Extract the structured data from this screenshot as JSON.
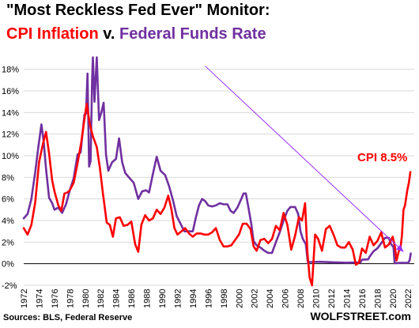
{
  "title": {
    "line1": "\"Most Reckless Fed Ever\" Monitor:",
    "cpi": "CPI Inflation",
    "sep": " v. ",
    "ffr": "Federal Funds Rate"
  },
  "source": "Sources: BLS, Federal Reserve",
  "brand": "WOLFSTREET.com",
  "colors": {
    "cpi": "#ff0000",
    "ffr": "#7030a0",
    "arrow": "#9b30ff"
  },
  "chart_data": {
    "type": "line",
    "ylim": [
      -2,
      19
    ],
    "xlim": [
      1972,
      2022.8
    ],
    "grid": "horizontal",
    "y_ticks": [
      "-2%",
      "0%",
      "2%",
      "4%",
      "6%",
      "8%",
      "10%",
      "12%",
      "14%",
      "16%",
      "18%"
    ],
    "y_tick_values": [
      -2,
      0,
      2,
      4,
      6,
      8,
      10,
      12,
      14,
      16,
      18
    ],
    "x_ticks": [
      "1972",
      "1974",
      "1976",
      "1978",
      "1980",
      "1982",
      "1984",
      "1986",
      "1988",
      "1990",
      "1992",
      "1994",
      "1996",
      "1998",
      "2000",
      "2002",
      "2004",
      "2006",
      "2008",
      "2010",
      "2012",
      "2014",
      "2016",
      "2018",
      "2020",
      "2022"
    ],
    "series": [
      {
        "name": "CPI Inflation",
        "color": "#ff0000",
        "x": [
          1972.0,
          1972.5,
          1973.0,
          1973.5,
          1974.0,
          1974.5,
          1974.9,
          1975.3,
          1975.7,
          1976.0,
          1976.5,
          1976.9,
          1977.3,
          1977.7,
          1978.0,
          1978.5,
          1979.0,
          1979.5,
          1980.0,
          1980.2,
          1980.6,
          1981.0,
          1981.5,
          1981.9,
          1982.3,
          1982.8,
          1983.2,
          1983.6,
          1984.0,
          1984.5,
          1985.0,
          1985.5,
          1986.0,
          1986.5,
          1986.9,
          1987.3,
          1987.8,
          1988.3,
          1988.8,
          1989.3,
          1989.8,
          1990.3,
          1990.8,
          1991.2,
          1991.6,
          1992.0,
          1992.5,
          1993.0,
          1993.5,
          1994.0,
          1994.5,
          1995.0,
          1995.5,
          1996.0,
          1996.5,
          1997.0,
          1997.5,
          1998.0,
          1998.5,
          1999.0,
          1999.5,
          2000.0,
          2000.5,
          2001.0,
          2001.5,
          2001.9,
          2002.3,
          2002.8,
          2003.3,
          2003.8,
          2004.3,
          2004.8,
          2005.3,
          2005.8,
          2006.3,
          2006.8,
          2007.3,
          2007.8,
          2008.2,
          2008.6,
          2008.9,
          2009.2,
          2009.5,
          2009.9,
          2010.3,
          2010.8,
          2011.3,
          2011.8,
          2012.3,
          2012.8,
          2013.3,
          2013.8,
          2014.3,
          2014.8,
          2015.2,
          2015.6,
          2016.0,
          2016.5,
          2017.0,
          2017.5,
          2018.0,
          2018.5,
          2019.0,
          2019.5,
          2020.0,
          2020.3,
          2020.5,
          2020.8,
          2021.0,
          2021.2,
          2021.4,
          2021.6,
          2021.9,
          2022.1,
          2022.3
        ],
        "values": [
          3.3,
          2.7,
          3.6,
          5.7,
          9.4,
          11.1,
          12.2,
          10.2,
          7.7,
          6.7,
          5.4,
          4.9,
          6.5,
          6.6,
          6.8,
          7.5,
          9.3,
          11.3,
          13.9,
          14.8,
          12.9,
          11.8,
          10.8,
          8.9,
          6.5,
          3.8,
          3.6,
          2.5,
          4.2,
          4.3,
          3.5,
          3.6,
          3.9,
          1.8,
          1.1,
          3.6,
          4.5,
          4.0,
          4.2,
          5.0,
          4.6,
          5.2,
          6.3,
          5.1,
          3.3,
          2.7,
          3.0,
          3.3,
          2.8,
          2.5,
          2.8,
          2.8,
          2.7,
          2.7,
          2.9,
          3.3,
          2.2,
          1.6,
          1.6,
          1.7,
          2.2,
          2.7,
          3.7,
          3.7,
          3.2,
          1.6,
          1.2,
          2.2,
          2.3,
          1.9,
          2.3,
          3.5,
          3.1,
          4.7,
          3.6,
          1.3,
          2.6,
          4.3,
          4.0,
          5.6,
          1.1,
          -1.3,
          -2.0,
          2.7,
          2.3,
          1.2,
          3.2,
          3.5,
          2.7,
          1.7,
          1.5,
          1.5,
          2.0,
          1.3,
          -0.1,
          0.1,
          1.4,
          1.0,
          2.5,
          1.7,
          2.1,
          2.9,
          1.5,
          1.8,
          2.5,
          1.5,
          0.3,
          1.2,
          1.4,
          2.6,
          5.0,
          5.4,
          6.8,
          7.5,
          8.5
        ]
      },
      {
        "name": "Federal Funds Rate",
        "color": "#7030a0",
        "x": [
          1972.0,
          1972.5,
          1973.0,
          1973.5,
          1973.9,
          1974.3,
          1974.6,
          1974.9,
          1975.3,
          1975.7,
          1976.0,
          1976.5,
          1977.0,
          1977.5,
          1978.0,
          1978.5,
          1979.0,
          1979.4,
          1979.9,
          1980.1,
          1980.3,
          1980.5,
          1980.7,
          1980.9,
          1981.0,
          1981.2,
          1981.5,
          1981.8,
          1982.1,
          1982.4,
          1982.7,
          1983.0,
          1983.5,
          1984.0,
          1984.4,
          1984.8,
          1985.2,
          1985.8,
          1986.3,
          1986.9,
          1987.4,
          1987.9,
          1988.3,
          1988.8,
          1989.3,
          1989.8,
          1990.4,
          1990.9,
          1991.4,
          1991.9,
          1992.4,
          1992.9,
          1993.5,
          1994.0,
          1994.4,
          1994.8,
          1995.2,
          1995.6,
          1996.0,
          1996.5,
          1997.0,
          1997.5,
          1998.0,
          1998.5,
          1998.9,
          1999.3,
          1999.8,
          2000.3,
          2000.6,
          2000.9,
          2001.2,
          2001.6,
          2001.9,
          2002.3,
          2002.8,
          2003.3,
          2003.8,
          2004.3,
          2004.8,
          2005.3,
          2005.8,
          2006.3,
          2006.7,
          2007.3,
          2007.7,
          2008.0,
          2008.3,
          2008.7,
          2008.95,
          2009.5,
          2010.5,
          2012.0,
          2014.0,
          2015.8,
          2016.0,
          2016.8,
          2017.0,
          2017.5,
          2018.0,
          2018.5,
          2019.0,
          2019.5,
          2019.8,
          2020.1,
          2020.25,
          2021.0,
          2022.0,
          2022.2,
          2022.35
        ],
        "values": [
          4.2,
          4.6,
          6.0,
          8.5,
          10.8,
          12.9,
          11.3,
          8.8,
          6.1,
          5.6,
          5.0,
          5.2,
          4.7,
          5.5,
          6.8,
          7.9,
          10.1,
          10.3,
          13.8,
          13.9,
          17.6,
          9.0,
          9.5,
          17.0,
          19.1,
          15.0,
          19.1,
          13.3,
          14.0,
          14.9,
          10.1,
          8.6,
          9.4,
          9.7,
          11.6,
          9.4,
          8.4,
          7.9,
          7.5,
          6.0,
          6.7,
          6.8,
          6.6,
          8.3,
          9.9,
          8.6,
          8.2,
          7.2,
          5.9,
          4.4,
          3.7,
          3.0,
          3.0,
          3.0,
          4.3,
          5.4,
          6.0,
          5.8,
          5.4,
          5.3,
          5.4,
          5.6,
          5.5,
          5.5,
          4.9,
          4.7,
          5.2,
          6.0,
          6.5,
          6.5,
          5.3,
          3.7,
          2.1,
          1.7,
          1.5,
          1.2,
          1.0,
          1.0,
          2.0,
          2.9,
          4.0,
          4.9,
          5.25,
          5.25,
          4.6,
          3.0,
          2.3,
          1.8,
          0.16,
          0.16,
          0.18,
          0.14,
          0.09,
          0.13,
          0.37,
          0.4,
          0.66,
          1.15,
          1.42,
          1.9,
          2.4,
          2.4,
          1.8,
          1.55,
          0.05,
          0.08,
          0.08,
          0.33,
          0.95
        ]
      }
    ],
    "annotation": {
      "text": "CPI 8.5%"
    }
  }
}
